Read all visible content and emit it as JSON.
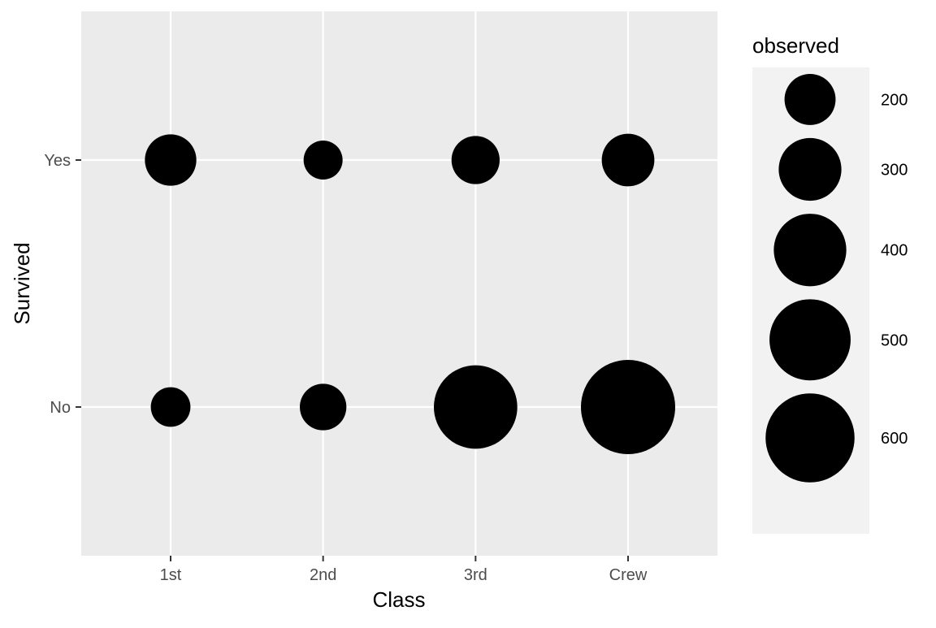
{
  "chart_data": {
    "type": "scatter",
    "x_categories": [
      "1st",
      "2nd",
      "3rd",
      "Crew"
    ],
    "y_categories": [
      "No",
      "Yes"
    ],
    "xlabel": "Class",
    "ylabel": "Survived",
    "grid": true,
    "points": [
      {
        "x": "1st",
        "y": "Yes",
        "observed": 203
      },
      {
        "x": "2nd",
        "y": "Yes",
        "observed": 118
      },
      {
        "x": "3rd",
        "y": "Yes",
        "observed": 178
      },
      {
        "x": "Crew",
        "y": "Yes",
        "observed": 212
      },
      {
        "x": "1st",
        "y": "No",
        "observed": 122
      },
      {
        "x": "2nd",
        "y": "No",
        "observed": 167
      },
      {
        "x": "3rd",
        "y": "No",
        "observed": 528
      },
      {
        "x": "Crew",
        "y": "No",
        "observed": 673
      }
    ],
    "size_range": [
      118,
      673
    ],
    "legend": {
      "title": "observed",
      "placement": "right",
      "breaks": [
        200,
        300,
        400,
        500,
        600
      ],
      "labels": [
        "200",
        "300",
        "400",
        "500",
        "600"
      ]
    },
    "colors": {
      "panel_background": "#ebebeb",
      "legend_background": "#f2f2f2",
      "gridline": "#ffffff",
      "point": "#000000"
    }
  }
}
